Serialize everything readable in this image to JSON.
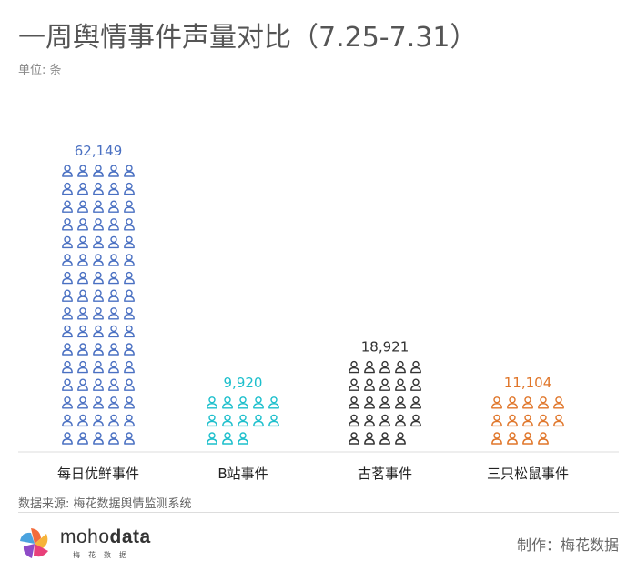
{
  "title": "一周舆情事件声量对比（7.25-7.31）",
  "unit_label": "单位: 条",
  "source": "数据来源: 梅花数据舆情监测系统",
  "credit": "制作：梅花数据",
  "logo": {
    "word_light": "moho",
    "word_bold": "data",
    "sub": "梅花数据",
    "icon": "pinwheel-logo-icon"
  },
  "chart_data": {
    "type": "pictograph",
    "icon": "person-icon",
    "categories": [
      "每日优鲜事件",
      "B站事件",
      "古茗事件",
      "三只松鼠事件"
    ],
    "values": [
      62149,
      9920,
      18921,
      11104
    ],
    "value_labels": [
      "62,149",
      "9,920",
      "18,921",
      "11,104"
    ],
    "icon_counts": [
      80,
      13,
      24,
      14
    ],
    "colors": [
      "#4a70c2",
      "#1cbfcc",
      "#333333",
      "#e0762a"
    ],
    "grid": false
  }
}
